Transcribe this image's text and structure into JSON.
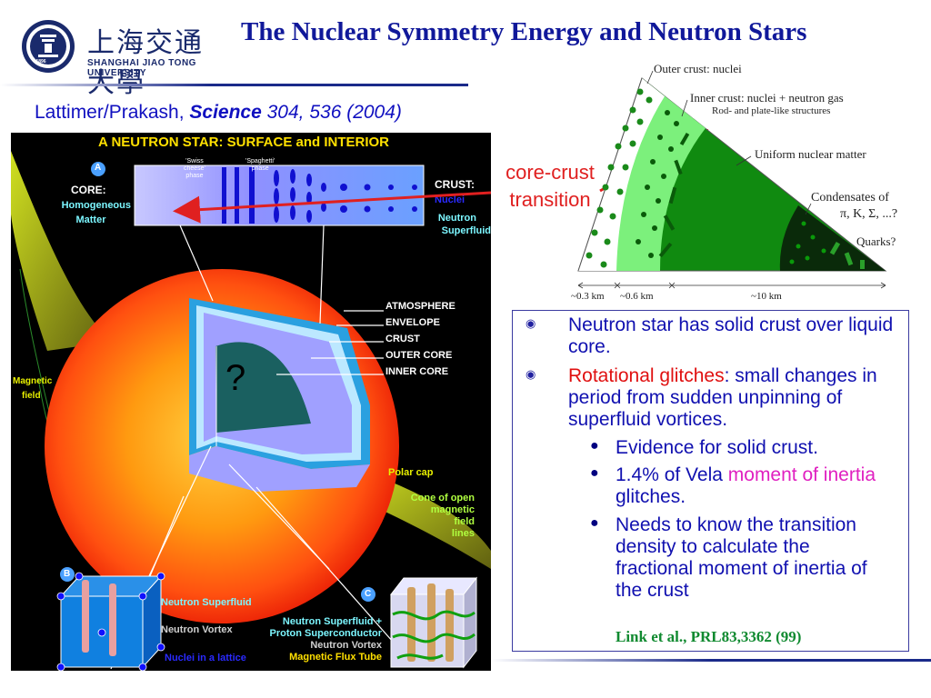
{
  "header": {
    "logo_cn": "上海交通大學",
    "logo_en": "SHANGHAI  JIAO TONG  UNIVERSITY",
    "seal_year": "1896",
    "title": "The Nuclear Symmetry Energy and Neutron Stars"
  },
  "citation": {
    "authors": "Lattimer/Prakash, ",
    "journal": "Science",
    "volume": " 304, 536 (2004)"
  },
  "star_figure": {
    "title": "A NEUTRON STAR:  SURFACE and INTERIOR",
    "label_a": "A",
    "label_b": "B",
    "label_c": "C",
    "core_heading": "CORE:",
    "core_text_1": "Homogeneous",
    "core_text_2": "Matter",
    "swiss_1": "'Swiss",
    "swiss_2": "cheese'",
    "swiss_3": "phase",
    "spag_1": "'Spaghetti'",
    "spag_2": "phase",
    "crust_heading": "CRUST:",
    "crust_nuclei": "Nuclei",
    "crust_sf_1": "Neutron",
    "crust_sf_2": "Superfluid",
    "atmosphere": "ATMOSPHERE",
    "envelope": "ENVELOPE",
    "crust": "CRUST",
    "outer_core": "OUTER CORE",
    "inner_core": "INNER CORE",
    "question": "?",
    "magnetic_1": "Magnetic",
    "magnetic_2": "field",
    "polar_cap": "Polar cap",
    "cone_1": "Cone of open",
    "cone_2": "magnetic",
    "cone_3": "field",
    "cone_4": "lines",
    "b_sf": "Neutron Superfluid",
    "b_vortex": "Neutron Vortex",
    "b_lattice": "Nuclei in a lattice",
    "c_line1": "Neutron Superfluid  +",
    "c_line2": "Proton Superconductor",
    "c_line3": "Neutron Vortex",
    "c_line4": "Magnetic Flux Tube"
  },
  "annotation": {
    "line1": "core-crust",
    "line2": "transition"
  },
  "wedge_figure": {
    "outer_crust": "Outer crust: nuclei",
    "inner_crust": "Inner crust: nuclei + neutron gas",
    "rod_plate": "Rod- and plate-like structures",
    "uniform": "Uniform  nuclear matter",
    "condensates_1": "Condensates of",
    "condensates_2": "π, K, Σ, ...?",
    "quarks": "Quarks?",
    "scale_1": "~0.3 km",
    "scale_2": "~0.6 km",
    "scale_3": "~10 km"
  },
  "bullets": {
    "b1": "Neutron star has solid crust over liquid core.",
    "b2_red": "Rotational glitches",
    "b2_rest": ": small changes in period from sudden unpinning of superfluid vortices.",
    "s1": "Evidence for solid crust.",
    "s2_pre": "1.4% of Vela ",
    "s2_mag": "moment of inertia",
    "s2_post": " glitches.",
    "s3": "Needs to know the transition density to calculate the fractional moment of inertia of the crust",
    "ref": "Link et al., PRL83,3362 (99)"
  },
  "colors": {
    "title_blue": "#10189a",
    "green_crust": "#1a8a1a",
    "bright_green": "#7cf07c",
    "annotation_red": "#e02020"
  }
}
